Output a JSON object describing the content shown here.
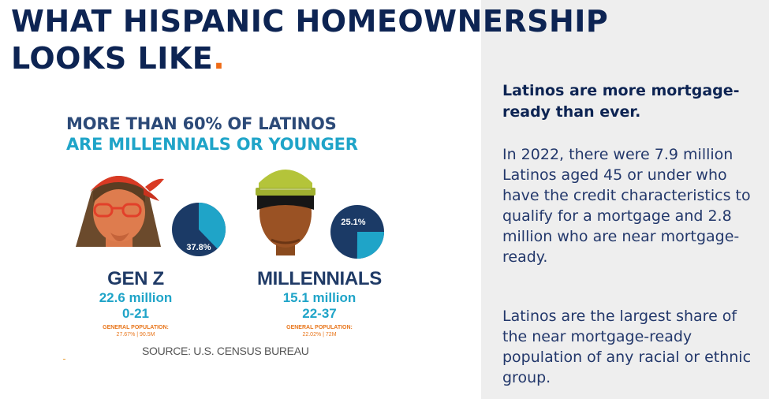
{
  "title": {
    "line1": "WHAT HISPANIC HOMEOWNERSHIP",
    "line2": "LOOKS LIKE",
    "dot": "."
  },
  "infographic": {
    "headline_line1": "MORE THAN 60% OF LATINOS",
    "headline_line2": "ARE MILLENNIALS OR YOUNGER",
    "genz": {
      "label": "GEN Z",
      "population": "22.6 million",
      "ages": "0-21",
      "gp_label": "GENERAL POPULATION:",
      "gp_value": "27.67% | 90.5M",
      "pie_label": "37.8%",
      "pie_fraction": 0.378
    },
    "millennials": {
      "label": "MILLENNIALS",
      "population": "15.1 million",
      "ages": "22-37",
      "gp_label": "GENERAL POPULATION:",
      "gp_value": "22.02% | 72M",
      "pie_label": "25.1%",
      "pie_fraction": 0.251
    },
    "source": "SOURCE: U.S. CENSUS BUREAU"
  },
  "sidebar": {
    "lead": "Latinos are more mortgage-ready than ever.",
    "paragraph1": "In 2022, there were 7.9 million Latinos aged 45 or under who have the credit characteristics to qualify for a mortgage and 2.8 million who are near mortgage-ready.",
    "paragraph2": "Latinos are the largest share of the near mortgage-ready population of any racial or ethnic group."
  },
  "colors": {
    "navy": "#0d2453",
    "teal": "#1fa4c8",
    "orange": "#ef6b16",
    "panel": "#eeeeee"
  }
}
